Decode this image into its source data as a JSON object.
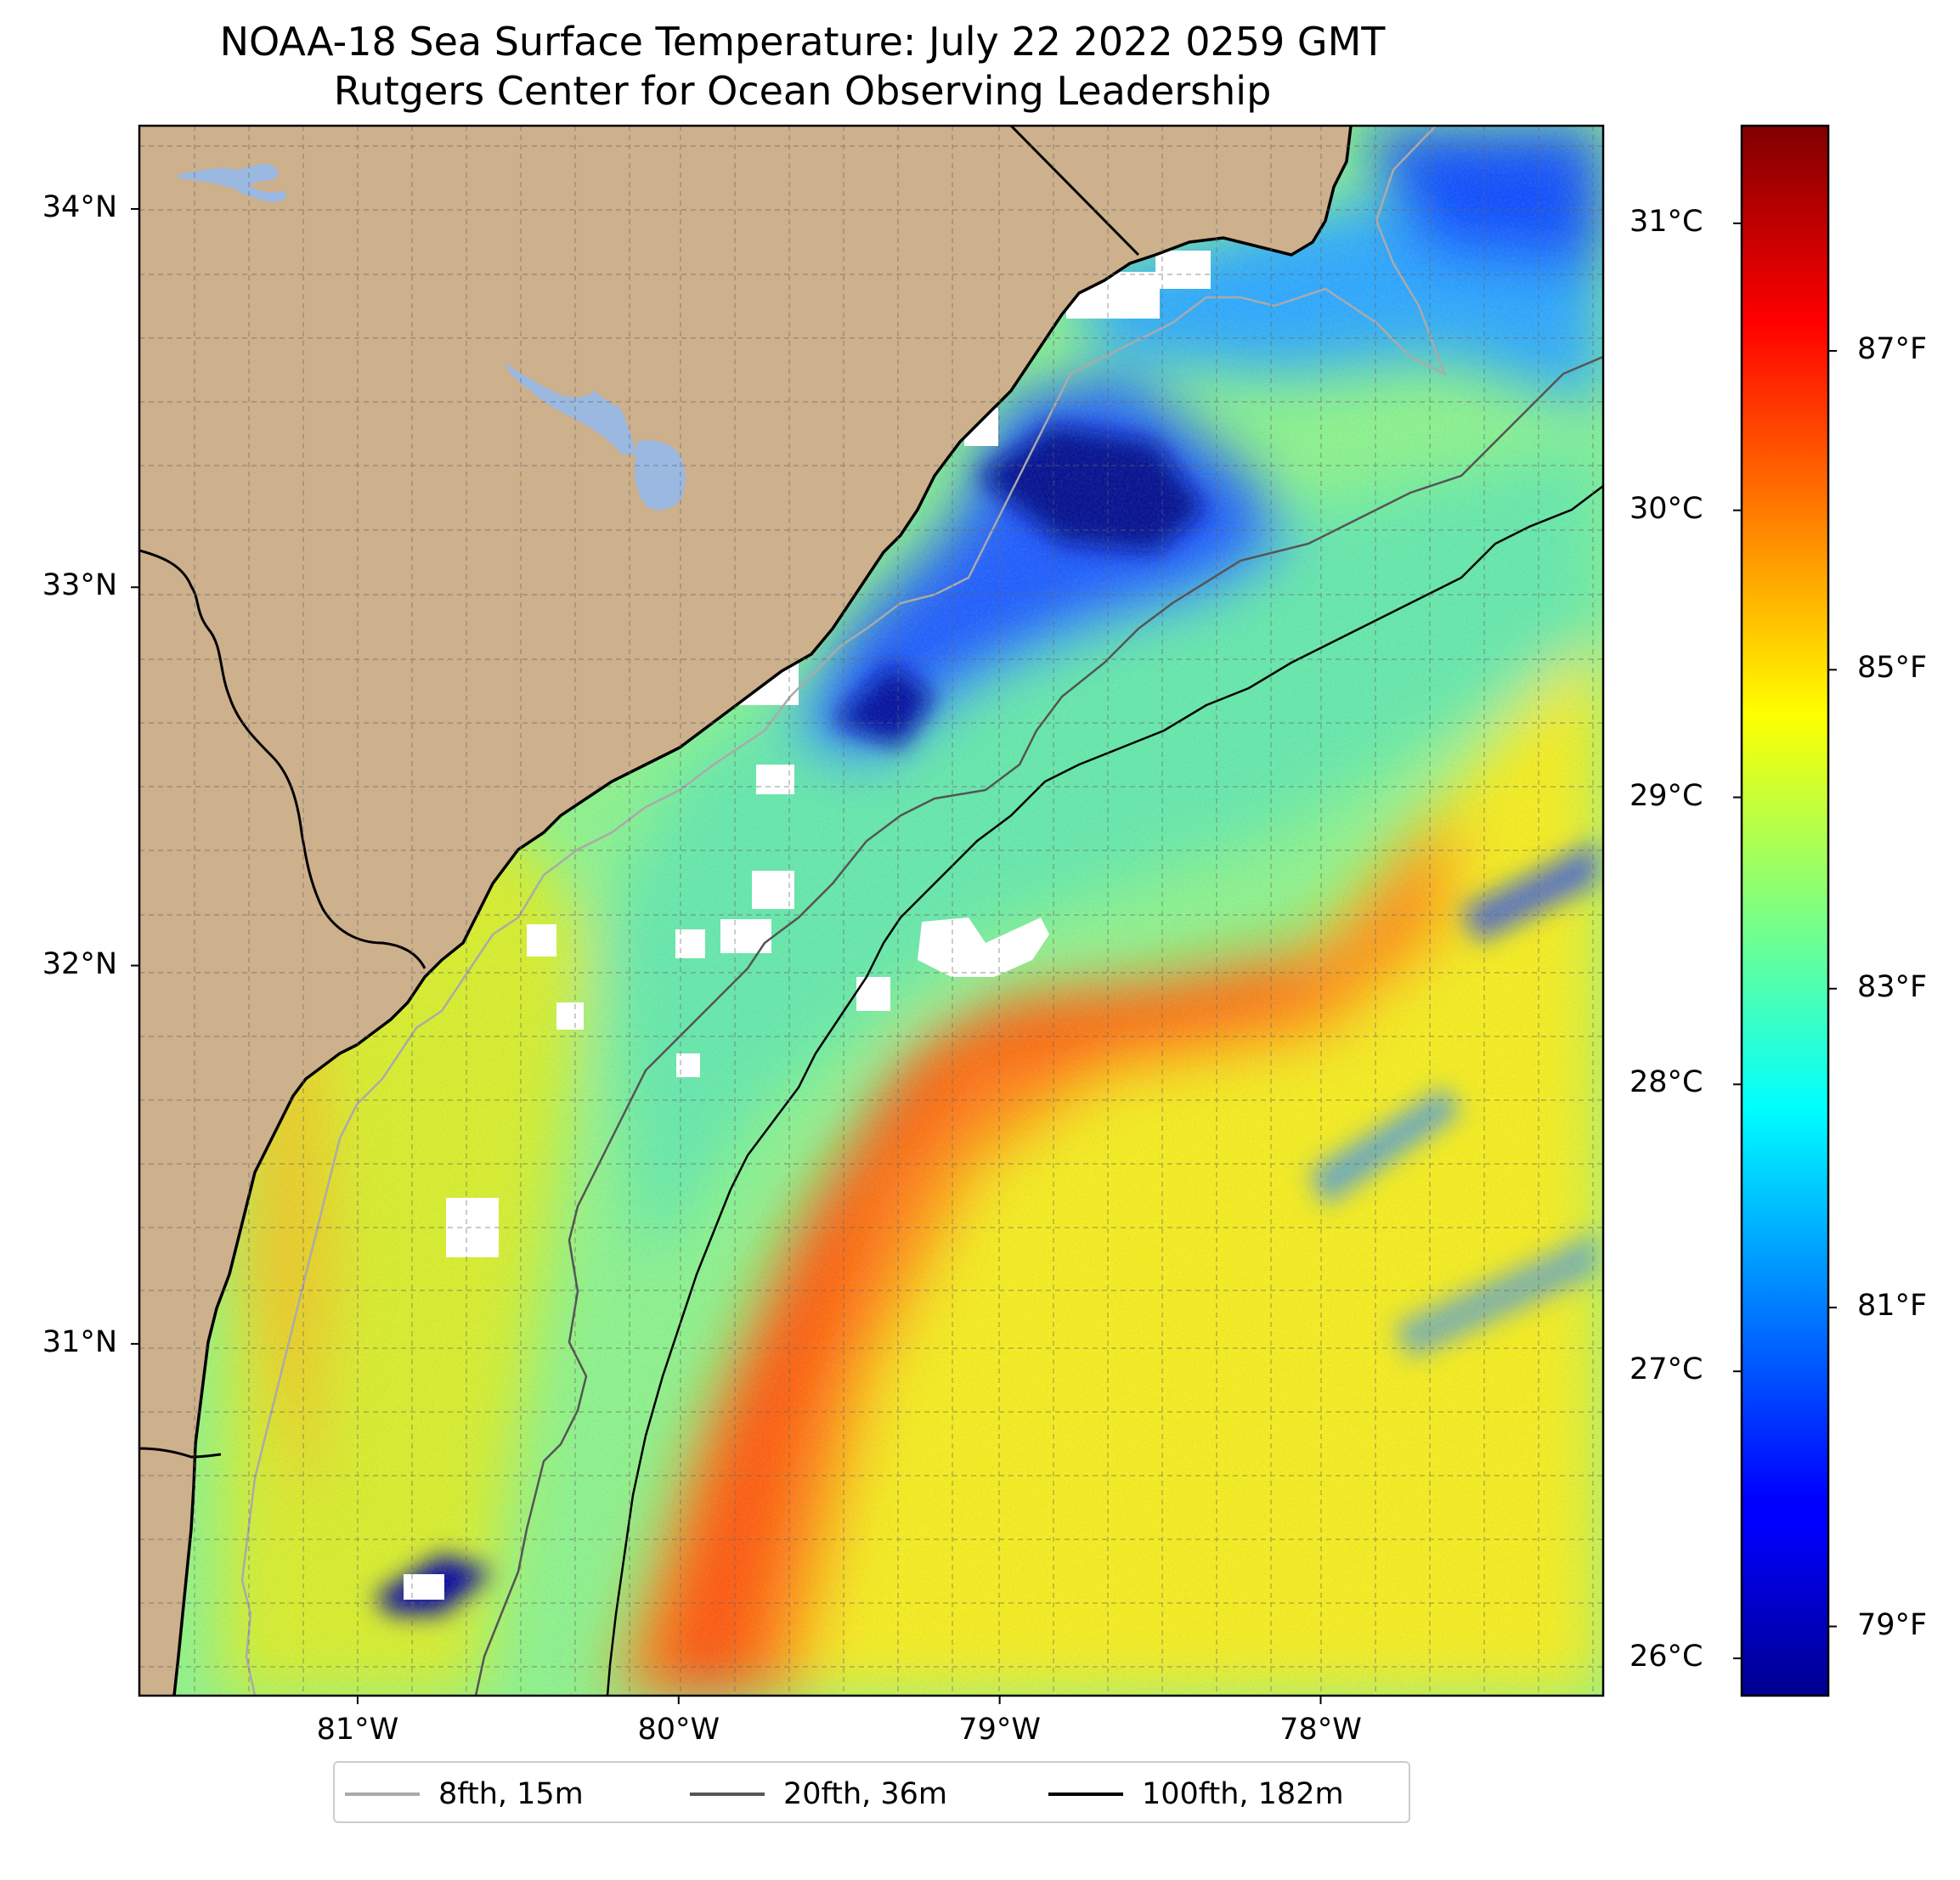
{
  "title": {
    "line1": "NOAA-18 Sea Surface Temperature: July 22 2022 0259 GMT",
    "line2": "Rutgers Center for Ocean Observing Leadership"
  },
  "map": {
    "projection": "plate carree",
    "extent": {
      "lon_min": -81.68,
      "lon_max": -77.12,
      "lat_min": 30.07,
      "lat_max": 34.22
    },
    "land_color": "#cdb08c",
    "lake_color": "#9bb8e0",
    "nodata_color": "#ffffff",
    "gridlines": true,
    "lat_ticks": [
      {
        "value": 34,
        "label": "34°N"
      },
      {
        "value": 33,
        "label": "33°N"
      },
      {
        "value": 32,
        "label": "32°N"
      },
      {
        "value": 31,
        "label": "31°N"
      }
    ],
    "lon_ticks": [
      {
        "value": -81,
        "label": "81°W"
      },
      {
        "value": -80,
        "label": "80°W"
      },
      {
        "value": -79,
        "label": "79°W"
      },
      {
        "value": -78,
        "label": "78°W"
      }
    ]
  },
  "colorbar": {
    "colormap": "jet",
    "min_c": 25.87,
    "max_c": 31.34,
    "celsius_ticks": [
      {
        "value": 31,
        "label": "31°C"
      },
      {
        "value": 30,
        "label": "30°C"
      },
      {
        "value": 29,
        "label": "29°C"
      },
      {
        "value": 28,
        "label": "28°C"
      },
      {
        "value": 27,
        "label": "27°C"
      },
      {
        "value": 26,
        "label": "26°C"
      }
    ],
    "fahrenheit_ticks": [
      {
        "value": 87,
        "label": "87°F"
      },
      {
        "value": 85,
        "label": "85°F"
      },
      {
        "value": 83,
        "label": "83°F"
      },
      {
        "value": 81,
        "label": "81°F"
      },
      {
        "value": 79,
        "label": "79°F"
      }
    ]
  },
  "legend": {
    "placement": "bottom-center",
    "items": [
      {
        "label": "8fth, 15m",
        "color": "#aaaaaa"
      },
      {
        "label": "20fth, 36m",
        "color": "#555555"
      },
      {
        "label": "100fth, 182m",
        "color": "#000000"
      }
    ]
  }
}
